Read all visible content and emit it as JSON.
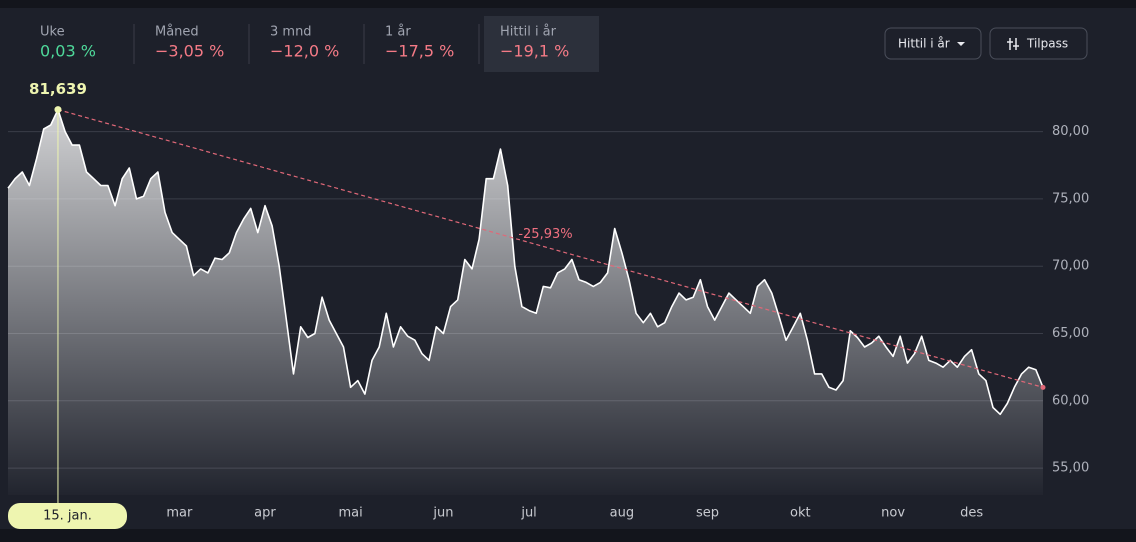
{
  "tabs": [
    {
      "label": "Uke",
      "change": "0,03 %",
      "color": "#4ed89a"
    },
    {
      "label": "Måned",
      "change": "−3,05 %",
      "color": "#f47a86"
    },
    {
      "label": "3 mnd",
      "change": "−12,0 %",
      "color": "#f47a86"
    },
    {
      "label": "1 år",
      "change": "−17,5 %",
      "color": "#f47a86"
    },
    {
      "label": "Hittil i år",
      "change": "−19,1 %",
      "color": "#f47a86",
      "selected": true
    }
  ],
  "buttons": {
    "period": "Hittil i år",
    "customize": "Tilpass"
  },
  "chart_data": {
    "type": "line",
    "color": "#ffffff",
    "trend_color": "#e06878",
    "highlight_color": "#eef5b0",
    "annotation": "-25,93%",
    "categories": [
      null,
      null,
      null,
      null,
      null,
      null,
      null,
      "15. jan.",
      null,
      null,
      null,
      null,
      null,
      null,
      null,
      null,
      null,
      null,
      null,
      null,
      null,
      null,
      null,
      null,
      "mar",
      null,
      null,
      null,
      null,
      null,
      null,
      null,
      null,
      null,
      null,
      null,
      "apr",
      null,
      null,
      null,
      null,
      null,
      null,
      null,
      null,
      null,
      null,
      null,
      "mai",
      null,
      null,
      null,
      null,
      null,
      null,
      null,
      null,
      null,
      null,
      null,
      null,
      "jun",
      null,
      null,
      null,
      null,
      null,
      null,
      null,
      null,
      null,
      null,
      null,
      "jul",
      null,
      null,
      null,
      null,
      null,
      null,
      null,
      null,
      null,
      null,
      null,
      null,
      "aug",
      null,
      null,
      null,
      null,
      null,
      null,
      null,
      null,
      null,
      null,
      null,
      "sep",
      null,
      null,
      null,
      null,
      null,
      null,
      null,
      null,
      null,
      null,
      null,
      null,
      "okt",
      null,
      null,
      null,
      null,
      null,
      null,
      null,
      null,
      null,
      null,
      null,
      null,
      "nov",
      null,
      null,
      null,
      null,
      null,
      null,
      null,
      null,
      null,
      null,
      "des",
      null,
      null,
      null,
      null,
      null,
      null,
      null,
      null,
      null,
      null
    ],
    "values": [
      75.8,
      76.5,
      77,
      76,
      78,
      80.2,
      80.5,
      81.639,
      80,
      79,
      79,
      77,
      76.5,
      76,
      76,
      74.5,
      76.5,
      77.3,
      75,
      75.2,
      76.5,
      77,
      74,
      72.5,
      72,
      71.5,
      69.3,
      69.8,
      69.5,
      70.6,
      70.5,
      71,
      72.5,
      73.5,
      74.3,
      72.5,
      74.5,
      73,
      70,
      66,
      62,
      65.5,
      64.7,
      65,
      67.7,
      66,
      65,
      64,
      61,
      61.5,
      60.5,
      63,
      64,
      66.5,
      64,
      65.5,
      64.8,
      64.5,
      63.5,
      63,
      65.5,
      65,
      67,
      67.5,
      70.5,
      69.8,
      72,
      76.5,
      76.5,
      78.7,
      76,
      70,
      67,
      66.7,
      66.5,
      68.5,
      68.4,
      69.5,
      69.8,
      70.5,
      69,
      68.8,
      68.5,
      68.8,
      69.5,
      72.8,
      71,
      69,
      66.5,
      65.8,
      66.5,
      65.5,
      65.8,
      67,
      68,
      67.5,
      67.7,
      69,
      67,
      66,
      67,
      68,
      67.5,
      67,
      66.5,
      68.5,
      69,
      68,
      66.3,
      64.5,
      65.5,
      66.5,
      64.5,
      62,
      62,
      61,
      60.8,
      61.5,
      65.2,
      64.7,
      64,
      64.3,
      64.8,
      64,
      63.3,
      64.8,
      62.8,
      63.5,
      64.8,
      63,
      62.8,
      62.5,
      63,
      62.5,
      63.3,
      63.8,
      62,
      61.5,
      59.5,
      59,
      59.8,
      61,
      62,
      62.5,
      62.3,
      61
    ],
    "value_labels": [
      null,
      null,
      null,
      null,
      null,
      null,
      null,
      "81,639",
      null,
      null,
      null,
      null,
      null,
      null,
      null,
      null,
      null,
      null,
      null,
      null,
      null,
      null,
      null,
      null,
      null,
      null,
      null,
      null,
      null,
      null,
      null,
      null,
      null,
      null,
      null,
      null,
      null,
      null,
      null,
      null,
      null,
      null,
      null,
      null,
      null,
      null,
      null,
      null,
      null,
      null,
      null,
      null,
      null,
      null,
      null,
      null,
      null,
      null,
      null,
      null,
      null,
      null,
      null,
      null,
      null,
      null,
      null,
      null,
      null,
      null,
      null,
      null,
      null,
      null,
      null,
      null,
      null,
      null,
      null,
      null,
      null,
      null,
      null,
      null,
      null,
      null,
      null,
      null,
      null,
      null,
      null,
      null,
      null,
      null,
      null,
      null,
      null,
      null,
      null,
      null,
      null,
      null,
      null,
      null,
      null,
      null,
      null,
      null,
      null,
      null,
      null,
      null,
      null,
      null,
      null,
      null,
      null,
      null,
      null,
      null,
      null,
      null,
      null,
      null,
      null,
      null,
      null,
      null,
      null,
      null,
      null,
      null,
      null,
      null,
      null,
      null,
      null,
      null,
      null,
      null,
      null,
      null,
      null,
      null,
      null,
      null
    ],
    "ylim": [
      53,
      82.5
    ],
    "yticks": [
      {
        "value": 55,
        "label": "55,00"
      },
      {
        "value": 60,
        "label": "60,00"
      },
      {
        "value": 65,
        "label": "65,00"
      },
      {
        "value": 70,
        "label": "70,00"
      },
      {
        "value": 75,
        "label": "75,00"
      },
      {
        "value": 80,
        "label": "80,00"
      }
    ],
    "grid": true
  }
}
